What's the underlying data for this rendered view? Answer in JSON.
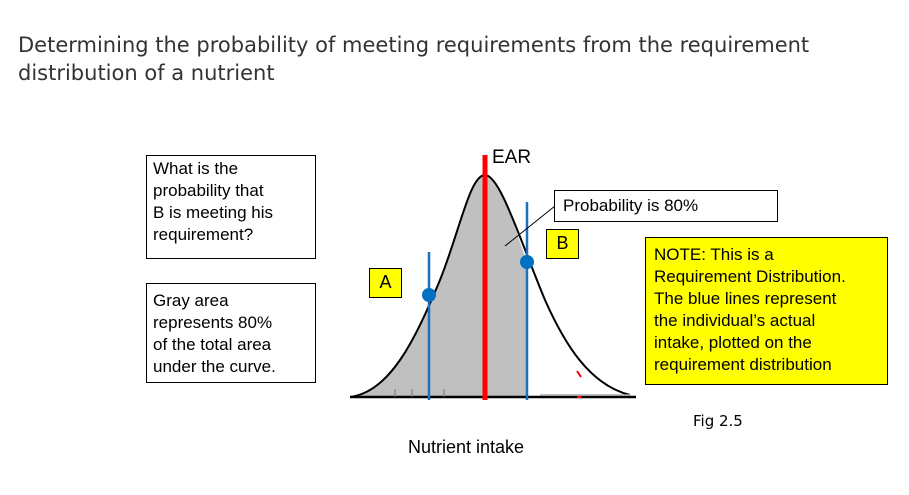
{
  "title": {
    "line1": "Determining the probability of meeting requirements from the requirement",
    "line2": "distribution of a nutrient"
  },
  "question_box": {
    "lines": [
      "What is the",
      "probability that",
      "B is meeting his",
      "requirement?"
    ]
  },
  "gray_area_box": {
    "lines": [
      "Gray area",
      "represents 80%",
      "of the total area",
      "under the curve."
    ]
  },
  "probability_box": {
    "text": "Probability is  80%"
  },
  "note_box": {
    "lines": [
      "NOTE: This is a",
      "Requirement Distribution.",
      "The blue lines represent",
      "the individual’s actual",
      "intake, plotted on the",
      "requirement distribution"
    ]
  },
  "labels": {
    "ear": "EAR",
    "a": "A",
    "b": "B"
  },
  "figure_label": "Fig 2.5",
  "x_axis_label": "Nutrient intake",
  "colors": {
    "curve_fill": "#c0c0c0",
    "ear_line": "#ff0000",
    "intake_lines": "#1f6fc0",
    "intake_markers": "#0070c0",
    "note_background": "#ffff00"
  },
  "shaded_fraction": 0.8
}
